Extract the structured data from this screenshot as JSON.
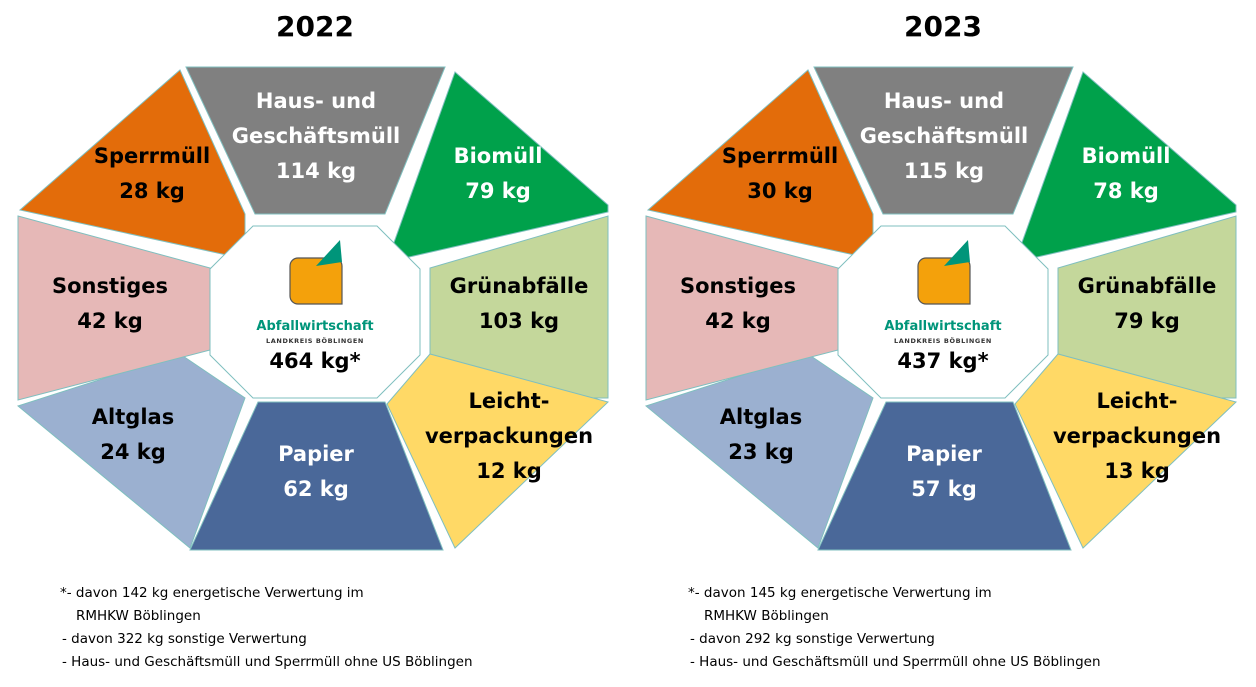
{
  "panels": [
    {
      "year": "2022",
      "center": {
        "logo_name": "Abfallwirtschaft",
        "logo_sub": "LANDKREIS BÖBLINGEN",
        "total": "464 kg*"
      },
      "segments": {
        "haus": {
          "lines": [
            "Haus- und",
            "Geschäftsmüll",
            "114 kg"
          ],
          "color": "#808080"
        },
        "bio": {
          "lines": [
            "Biomüll",
            "79 kg"
          ],
          "color": "#00a14b"
        },
        "gruen": {
          "lines": [
            "Grünabfälle",
            "103 kg"
          ],
          "color": "#c4d79b"
        },
        "leicht": {
          "lines": [
            "Leicht-",
            "verpackungen",
            "12 kg"
          ],
          "color": "#ffd966"
        },
        "papier": {
          "lines": [
            "Papier",
            "62 kg"
          ],
          "color": "#4a6899"
        },
        "altglas": {
          "lines": [
            "Altglas",
            "24 kg"
          ],
          "color": "#9bb0d0"
        },
        "sonstiges": {
          "lines": [
            "Sonstiges",
            "42 kg"
          ],
          "color": "#e6b8b7"
        },
        "sperr": {
          "lines": [
            "Sperrmüll",
            "28 kg"
          ],
          "color": "#e36c0a"
        }
      },
      "notes": [
        "*- davon 142 kg energetische Verwertung im",
        "RMHKW Böblingen",
        "- davon 322 kg sonstige Verwertung",
        "- Haus- und Geschäftsmüll und Sperrmüll ohne US Böblingen"
      ]
    },
    {
      "year": "2023",
      "center": {
        "logo_name": "Abfallwirtschaft",
        "logo_sub": "LANDKREIS BÖBLINGEN",
        "total": "437 kg*"
      },
      "segments": {
        "haus": {
          "lines": [
            "Haus- und",
            "Geschäftsmüll",
            "115 kg"
          ],
          "color": "#808080"
        },
        "bio": {
          "lines": [
            "Biomüll",
            "78 kg"
          ],
          "color": "#00a14b"
        },
        "gruen": {
          "lines": [
            "Grünabfälle",
            "79 kg"
          ],
          "color": "#c4d79b"
        },
        "leicht": {
          "lines": [
            "Leicht-",
            "verpackungen",
            "13 kg"
          ],
          "color": "#ffd966"
        },
        "papier": {
          "lines": [
            "Papier",
            "57 kg"
          ],
          "color": "#4a6899"
        },
        "altglas": {
          "lines": [
            "Altglas",
            "23 kg"
          ],
          "color": "#9bb0d0"
        },
        "sonstiges": {
          "lines": [
            "Sonstiges",
            "42 kg"
          ],
          "color": "#e6b8b7"
        },
        "sperr": {
          "lines": [
            "Sperrmüll",
            "30 kg"
          ],
          "color": "#e36c0a"
        }
      },
      "notes": [
        "*- davon 145 kg energetische Verwertung im",
        "RMHKW Böblingen",
        "- davon 292 kg sonstige Verwertung",
        "- Haus- und Geschäftsmüll und Sperrmüll ohne US Böblingen"
      ]
    }
  ]
}
